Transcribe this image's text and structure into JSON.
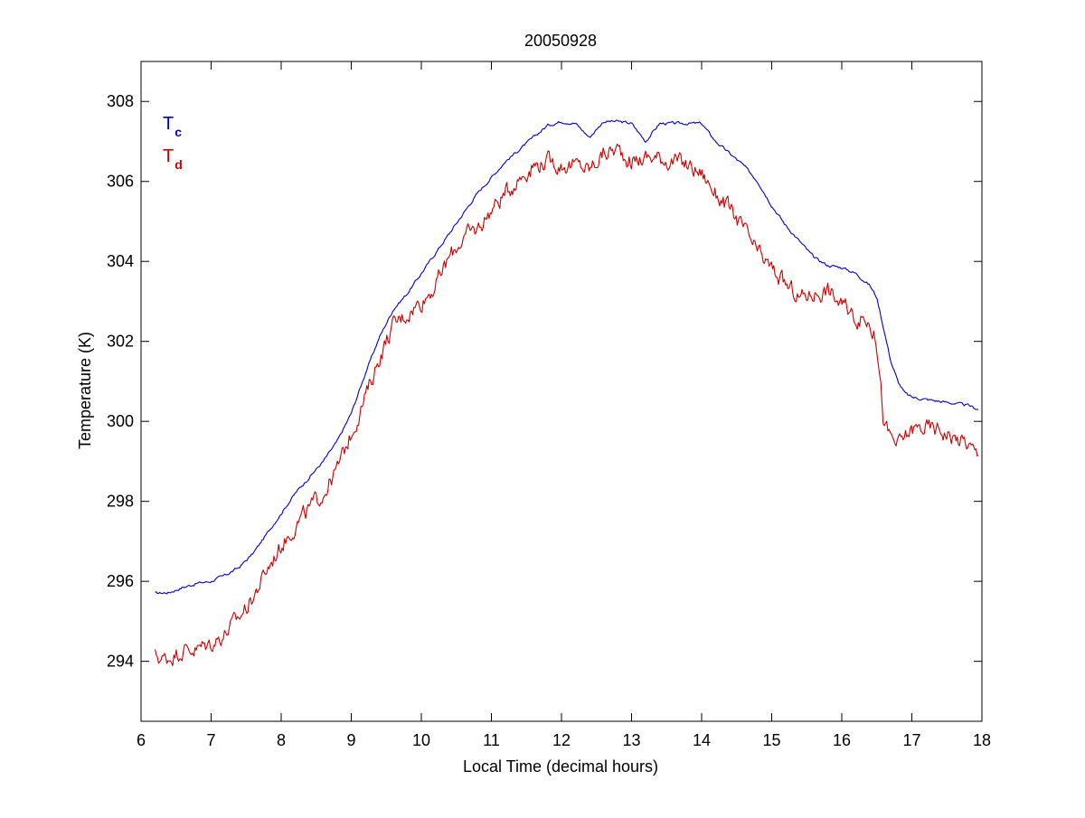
{
  "chart_data": {
    "type": "line",
    "title": "20050928",
    "xlabel": "Local Time (decimal hours)",
    "ylabel": "Temperature (K)",
    "xlim": [
      6,
      18
    ],
    "ylim": [
      292.5,
      309
    ],
    "xticks": [
      6,
      7,
      8,
      9,
      10,
      11,
      12,
      13,
      14,
      15,
      16,
      17,
      18
    ],
    "yticks": [
      294,
      296,
      298,
      300,
      302,
      304,
      306,
      308
    ],
    "grid": false,
    "legend_position": "top-left",
    "series": [
      {
        "name": "T",
        "subscript": "c",
        "color": "#0000cc",
        "noise": 0.03,
        "x": [
          6.2,
          6.4,
          6.6,
          6.8,
          7.0,
          7.2,
          7.4,
          7.6,
          7.8,
          8.0,
          8.2,
          8.4,
          8.6,
          8.8,
          9.0,
          9.2,
          9.4,
          9.6,
          9.8,
          10.0,
          10.2,
          10.4,
          10.6,
          10.8,
          11.0,
          11.2,
          11.4,
          11.6,
          11.8,
          12.0,
          12.2,
          12.4,
          12.6,
          12.8,
          13.0,
          13.2,
          13.4,
          13.6,
          13.8,
          14.0,
          14.2,
          14.4,
          14.6,
          14.8,
          15.0,
          15.2,
          15.4,
          15.6,
          15.8,
          16.0,
          16.2,
          16.4,
          16.5,
          16.6,
          16.7,
          16.8,
          16.9,
          17.0,
          17.2,
          17.4,
          17.6,
          17.8,
          17.95
        ],
        "y": [
          295.7,
          295.72,
          295.85,
          295.95,
          296.0,
          296.15,
          296.35,
          296.7,
          297.2,
          297.7,
          298.2,
          298.6,
          299.0,
          299.5,
          300.2,
          301.2,
          302.1,
          302.8,
          303.2,
          303.7,
          304.2,
          304.7,
          305.2,
          305.7,
          306.1,
          306.5,
          306.8,
          307.1,
          307.4,
          307.5,
          307.45,
          307.1,
          307.5,
          307.5,
          307.45,
          307.0,
          307.45,
          307.45,
          307.45,
          307.45,
          307.0,
          306.7,
          306.4,
          306.0,
          305.4,
          304.9,
          304.5,
          304.1,
          303.9,
          303.85,
          303.7,
          303.4,
          303.1,
          302.3,
          301.5,
          301.0,
          300.7,
          300.6,
          300.55,
          300.5,
          300.45,
          300.4,
          300.3
        ]
      },
      {
        "name": "T",
        "subscript": "d",
        "color": "#cc0000",
        "noise": 0.18,
        "x": [
          6.2,
          6.3,
          6.4,
          6.6,
          6.8,
          7.0,
          7.2,
          7.4,
          7.6,
          7.8,
          8.0,
          8.2,
          8.4,
          8.6,
          8.8,
          9.0,
          9.2,
          9.4,
          9.6,
          9.8,
          10.0,
          10.2,
          10.4,
          10.6,
          10.8,
          11.0,
          11.2,
          11.4,
          11.6,
          11.8,
          12.0,
          12.2,
          12.4,
          12.6,
          12.8,
          13.0,
          13.2,
          13.4,
          13.6,
          13.8,
          14.0,
          14.2,
          14.4,
          14.6,
          14.8,
          15.0,
          15.2,
          15.4,
          15.6,
          15.8,
          16.0,
          16.2,
          16.4,
          16.5,
          16.55,
          16.6,
          16.7,
          16.8,
          16.9,
          17.0,
          17.2,
          17.4,
          17.6,
          17.8,
          17.95
        ],
        "y": [
          294.15,
          294.05,
          294.1,
          294.3,
          294.3,
          294.45,
          294.7,
          295.1,
          295.6,
          296.3,
          296.9,
          297.4,
          297.8,
          298.2,
          298.8,
          299.7,
          300.6,
          301.6,
          302.4,
          302.7,
          303.0,
          303.4,
          304.1,
          304.6,
          304.8,
          305.3,
          305.7,
          306.1,
          306.4,
          306.5,
          306.4,
          306.4,
          306.3,
          306.7,
          306.8,
          306.5,
          306.6,
          306.6,
          306.5,
          306.4,
          306.2,
          305.7,
          305.3,
          304.8,
          304.2,
          303.8,
          303.4,
          303.1,
          303.2,
          303.3,
          302.9,
          302.6,
          302.5,
          302.0,
          301.0,
          299.9,
          299.6,
          299.4,
          299.6,
          299.8,
          299.85,
          299.8,
          299.6,
          299.45,
          299.1
        ]
      }
    ]
  }
}
